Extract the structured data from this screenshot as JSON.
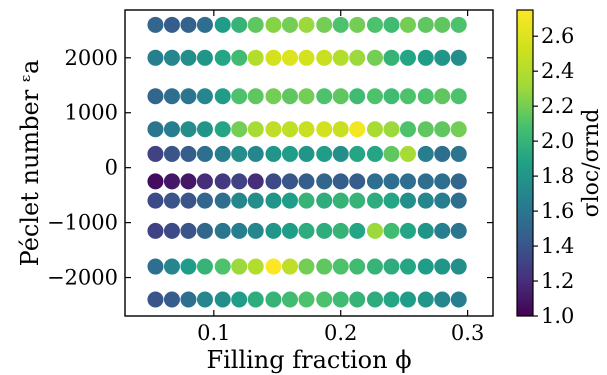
{
  "chart_data": {
    "type": "scatter",
    "xlabel": "Filling fraction ϕ",
    "ylabel": "Péclet number ᵋa",
    "colorbar_label": "σloc/σrnd",
    "xlim": [
      0.03,
      0.32
    ],
    "ylim": [
      -2700,
      2870
    ],
    "x_ticks": [
      0.1,
      0.2,
      0.3
    ],
    "x_tick_labels": [
      "0.1",
      "0.2",
      "0.3"
    ],
    "y_ticks": [
      -2000,
      -1000,
      0,
      1000,
      2000
    ],
    "y_tick_labels": [
      "−2000",
      "−1000",
      "0",
      "1000",
      "2000"
    ],
    "colorbar_range": [
      1.0,
      2.75
    ],
    "colorbar_ticks": [
      1.0,
      1.2,
      1.4,
      1.6,
      1.8,
      2.0,
      2.2,
      2.4,
      2.6
    ],
    "colorbar_tick_labels": [
      "1.0",
      "1.2",
      "1.4",
      "1.6",
      "1.8",
      "2.0",
      "2.2",
      "2.4",
      "2.6"
    ],
    "colormap": "viridis",
    "grid": false,
    "x": [
      0.054,
      0.067,
      0.08,
      0.093,
      0.107,
      0.12,
      0.133,
      0.147,
      0.16,
      0.173,
      0.187,
      0.2,
      0.213,
      0.227,
      0.24,
      0.253,
      0.267,
      0.28,
      0.293
    ],
    "rows": [
      {
        "y": 2600,
        "values": [
          1.5,
          1.45,
          1.48,
          1.55,
          1.85,
          2.0,
          2.15,
          2.25,
          2.2,
          2.3,
          2.2,
          2.1,
          2.2,
          2.1,
          2.05,
          2.2,
          2.15,
          2.15,
          2.1
        ]
      },
      {
        "y": 2000,
        "values": [
          1.65,
          1.7,
          1.75,
          1.8,
          1.9,
          2.05,
          2.4,
          2.55,
          2.6,
          2.55,
          2.5,
          2.4,
          2.3,
          2.2,
          2.0,
          1.9,
          1.85,
          1.8,
          1.75
        ]
      },
      {
        "y": 1300,
        "values": [
          1.5,
          1.55,
          1.6,
          1.7,
          1.85,
          2.1,
          2.15,
          2.2,
          2.15,
          2.2,
          2.1,
          2.15,
          2.05,
          2.1,
          2.05,
          2.1,
          2.1,
          2.15,
          2.1
        ]
      },
      {
        "y": 700,
        "values": [
          1.6,
          1.65,
          1.75,
          1.8,
          1.9,
          2.2,
          2.35,
          2.45,
          2.45,
          2.5,
          2.55,
          2.5,
          2.7,
          2.35,
          2.3,
          2.1,
          2.15,
          2.15,
          2.2
        ]
      },
      {
        "y": 250,
        "values": [
          1.3,
          1.4,
          1.45,
          1.55,
          1.65,
          1.75,
          1.7,
          1.8,
          1.85,
          1.8,
          1.85,
          1.75,
          1.9,
          1.9,
          2.15,
          2.35,
          1.65,
          1.55,
          1.6
        ]
      },
      {
        "y": -250,
        "values": [
          1.05,
          1.1,
          1.1,
          1.2,
          1.25,
          1.3,
          1.2,
          1.35,
          1.4,
          1.45,
          1.5,
          1.45,
          1.45,
          1.55,
          1.55,
          1.55,
          1.55,
          1.55,
          1.5
        ]
      },
      {
        "y": -600,
        "values": [
          1.35,
          1.4,
          1.4,
          1.5,
          1.55,
          1.7,
          1.75,
          1.8,
          1.85,
          2.0,
          1.95,
          2.0,
          2.0,
          1.95,
          1.9,
          1.75,
          1.7,
          1.65,
          1.55
        ]
      },
      {
        "y": -1150,
        "values": [
          1.3,
          1.35,
          1.4,
          1.5,
          1.6,
          1.65,
          1.7,
          1.8,
          1.85,
          1.95,
          1.95,
          2.0,
          1.9,
          2.3,
          2.05,
          1.9,
          1.8,
          1.65,
          1.6
        ]
      },
      {
        "y": -1800,
        "values": [
          1.55,
          1.7,
          1.85,
          2.0,
          2.1,
          2.3,
          2.4,
          2.75,
          2.45,
          2.2,
          2.15,
          2.1,
          2.05,
          2.0,
          1.95,
          1.9,
          1.85,
          1.8,
          1.75
        ]
      },
      {
        "y": -2400,
        "values": [
          1.4,
          1.45,
          1.55,
          1.7,
          1.75,
          1.85,
          1.95,
          2.0,
          2.05,
          2.1,
          2.1,
          2.05,
          2.0,
          1.95,
          1.9,
          1.85,
          1.8,
          1.7,
          1.65
        ]
      }
    ]
  }
}
